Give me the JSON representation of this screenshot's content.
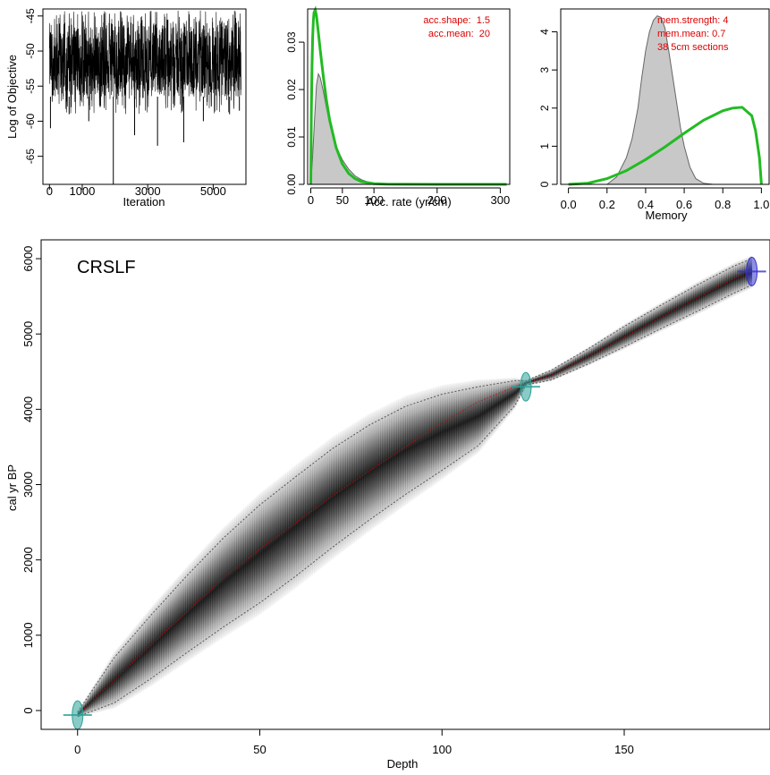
{
  "chart_data": [
    {
      "type": "line",
      "name": "mcmc-trace",
      "xlabel": "Iteration",
      "ylabel": "Log of Objective",
      "xlim": [
        -200,
        6000
      ],
      "ylim": [
        -69,
        -44
      ],
      "x_ticks": [
        0,
        1000,
        3000,
        5000
      ],
      "x_tick_labels": [
        "0",
        "1000",
        "3000",
        "5000"
      ],
      "y_ticks": [
        -45,
        -50,
        -55,
        -60,
        -65
      ],
      "y_tick_labels": [
        "-45",
        "-50",
        "-55",
        "-60",
        "-65"
      ],
      "band": {
        "x_start": 0,
        "x_end": 5850,
        "typical_min": -56.5,
        "typical_max": -46
      },
      "spikes": [
        {
          "x": 30,
          "y": -61
        },
        {
          "x": 600,
          "y": -59
        },
        {
          "x": 1200,
          "y": -60
        },
        {
          "x": 1950,
          "y": -69
        },
        {
          "x": 2600,
          "y": -62
        },
        {
          "x": 3300,
          "y": -63.5
        },
        {
          "x": 4100,
          "y": -63
        },
        {
          "x": 4700,
          "y": -60
        },
        {
          "x": 5500,
          "y": -59
        },
        {
          "x": 5800,
          "y": -58.5
        }
      ],
      "line_color": "#000000"
    },
    {
      "type": "area",
      "name": "accumulation-rate",
      "xlabel": "Acc. rate (yr/cm)",
      "ylabel": "",
      "xlim": [
        -5,
        315
      ],
      "ylim": [
        0,
        0.037
      ],
      "x_ticks": [
        0,
        50,
        100,
        200,
        300
      ],
      "x_tick_labels": [
        "0",
        "50",
        "100",
        "200",
        "300"
      ],
      "y_ticks": [
        0,
        0.01,
        0.02,
        0.03
      ],
      "y_tick_labels": [
        "0.00",
        "0.01",
        "0.02",
        "0.03"
      ],
      "posterior": {
        "x": [
          0,
          3,
          6,
          9,
          12,
          15,
          20,
          25,
          30,
          35,
          40,
          50,
          60,
          70,
          80,
          90,
          100,
          110,
          120
        ],
        "y": [
          0,
          0.006,
          0.014,
          0.021,
          0.0233,
          0.0225,
          0.0195,
          0.016,
          0.0128,
          0.0102,
          0.008,
          0.0052,
          0.0032,
          0.0018,
          0.001,
          0.0005,
          0.0002,
          8e-05,
          0
        ]
      },
      "prior": {
        "x": [
          0,
          1,
          2,
          3,
          4,
          5,
          7,
          9,
          12,
          15,
          20,
          25,
          30,
          40,
          50,
          60,
          70,
          80,
          100,
          120,
          150,
          200,
          250,
          310
        ],
        "y": [
          0,
          0.016,
          0.025,
          0.031,
          0.0345,
          0.0362,
          0.0368,
          0.0355,
          0.032,
          0.0283,
          0.0225,
          0.0175,
          0.0135,
          0.0078,
          0.0043,
          0.0023,
          0.0012,
          0.0006,
          0.00015,
          4e-05,
          1e-05,
          0,
          0,
          0
        ]
      },
      "annotations": [
        "acc.shape:  1.5",
        "acc.mean:  20"
      ],
      "posterior_fill": "#c8c8c8",
      "prior_color": "#22bb22",
      "annotation_color": "#dd0000"
    },
    {
      "type": "area",
      "name": "memory",
      "xlabel": "Memory",
      "ylabel": "",
      "xlim": [
        -0.04,
        1.04
      ],
      "ylim": [
        0,
        4.6
      ],
      "x_ticks": [
        0,
        0.2,
        0.4,
        0.6,
        0.8,
        1
      ],
      "x_tick_labels": [
        "0.0",
        "0.2",
        "0.4",
        "0.6",
        "0.8",
        "1.0"
      ],
      "y_ticks": [
        0,
        1,
        2,
        3,
        4
      ],
      "y_tick_labels": [
        "0",
        "1",
        "2",
        "3",
        "4"
      ],
      "posterior": {
        "x": [
          0.2,
          0.25,
          0.3,
          0.33,
          0.36,
          0.38,
          0.4,
          0.42,
          0.44,
          0.46,
          0.48,
          0.5,
          0.52,
          0.55,
          0.58,
          0.6,
          0.63,
          0.66,
          0.7,
          0.75
        ],
        "y": [
          0,
          0.2,
          0.7,
          1.2,
          2.0,
          2.8,
          3.5,
          4.0,
          4.3,
          4.42,
          4.38,
          4.1,
          3.5,
          2.5,
          1.5,
          1.0,
          0.45,
          0.15,
          0.03,
          0
        ]
      },
      "prior": {
        "x": [
          0,
          0.1,
          0.2,
          0.3,
          0.4,
          0.5,
          0.6,
          0.7,
          0.8,
          0.85,
          0.9,
          0.95,
          0.97,
          0.99,
          1
        ],
        "y": [
          0,
          0.03,
          0.15,
          0.36,
          0.65,
          0.98,
          1.34,
          1.68,
          1.93,
          2.0,
          2.02,
          1.8,
          1.4,
          0.7,
          0
        ]
      },
      "annotations": [
        "mem.strength: 4",
        "mem.mean: 0.7",
        "38 5cm sections"
      ],
      "posterior_fill": "#c8c8c8",
      "prior_color": "#22bb22",
      "annotation_color": "#dd0000"
    },
    {
      "type": "area",
      "name": "age-depth-model",
      "title": "CRSLF",
      "xlabel": "Depth",
      "ylabel": "cal yr BP",
      "xlim": [
        -10,
        190
      ],
      "ylim": [
        -250,
        6250
      ],
      "x_ticks": [
        0,
        50,
        100,
        150
      ],
      "x_tick_labels": [
        "0",
        "50",
        "100",
        "150"
      ],
      "y_ticks": [
        0,
        1000,
        2000,
        3000,
        4000,
        5000,
        6000
      ],
      "y_tick_labels": [
        "0",
        "1000",
        "2000",
        "3000",
        "4000",
        "5000",
        "6000"
      ],
      "depth": [
        0,
        10,
        20,
        30,
        40,
        50,
        60,
        70,
        80,
        90,
        100,
        110,
        120,
        123,
        130,
        140,
        150,
        160,
        170,
        180,
        185
      ],
      "mean_age": [
        -60,
        400,
        860,
        1310,
        1760,
        2140,
        2500,
        2850,
        3180,
        3500,
        3820,
        4100,
        4300,
        4350,
        4450,
        4700,
        4960,
        5220,
        5480,
        5730,
        5830
      ],
      "lower_95": [
        -80,
        100,
        420,
        770,
        1110,
        1430,
        1790,
        2170,
        2530,
        2870,
        3190,
        3520,
        4050,
        4320,
        4390,
        4600,
        4830,
        5070,
        5300,
        5540,
        5650
      ],
      "upper_95": [
        -20,
        700,
        1260,
        1790,
        2290,
        2730,
        3110,
        3480,
        3790,
        4040,
        4200,
        4300,
        4380,
        4380,
        4520,
        4800,
        5100,
        5380,
        5650,
        5900,
        6000
      ],
      "dated_levels": [
        {
          "depth": 0,
          "age": -60,
          "color": "#2aa198"
        },
        {
          "depth": 123,
          "age": 4300,
          "color": "#2aa198"
        },
        {
          "depth": 185,
          "age": 5830,
          "color": "#3333cc"
        }
      ],
      "mean_color": "#dd0000",
      "range_color": "#555555"
    }
  ]
}
